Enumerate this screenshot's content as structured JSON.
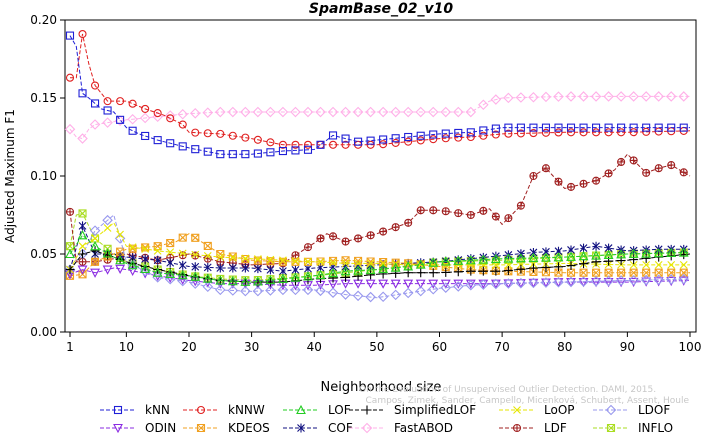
{
  "chart_data": {
    "type": "line",
    "title": "SpamBase_02_v10",
    "xlabel": "Neighborhood size",
    "ylabel": "Adjusted Maximum F1",
    "xlim": [
      1,
      100
    ],
    "ylim": [
      0,
      0.2
    ],
    "xticks": [
      1,
      10,
      20,
      30,
      40,
      50,
      60,
      70,
      80,
      90,
      100
    ],
    "yticks": [
      "0.00",
      "0.05",
      "0.10",
      "0.15",
      "0.20"
    ],
    "grid": false,
    "legend_position": "bottom",
    "watermark": {
      "line1": "Campos, Zimek, Sander, Campello, Micenková, Schubert, Assent, Houle",
      "line2": "On the Evaluation of Unsupervised Outlier Detection. DAMI, 2015."
    },
    "series": [
      {
        "name": "kNN",
        "color": "#1f1fd6",
        "marker": "square",
        "x": [
          1,
          2,
          3,
          4,
          6,
          8,
          10,
          12,
          15,
          18,
          20,
          25,
          30,
          35,
          40,
          43,
          47,
          50,
          55,
          60,
          65,
          70,
          80,
          90,
          100
        ],
        "values": [
          0.19,
          0.183,
          0.153,
          0.15,
          0.143,
          0.141,
          0.131,
          0.127,
          0.123,
          0.12,
          0.118,
          0.114,
          0.114,
          0.116,
          0.117,
          0.126,
          0.122,
          0.123,
          0.125,
          0.127,
          0.128,
          0.131,
          0.131,
          0.131,
          0.131
        ]
      },
      {
        "name": "kNNW",
        "color": "#e02020",
        "marker": "circle",
        "x": [
          1,
          2,
          3,
          4,
          5,
          7,
          10,
          13,
          16,
          19,
          20,
          25,
          30,
          35,
          40,
          45,
          50,
          55,
          60,
          65,
          70,
          80,
          90,
          100
        ],
        "values": [
          0.163,
          0.163,
          0.191,
          0.172,
          0.158,
          0.148,
          0.148,
          0.143,
          0.139,
          0.133,
          0.128,
          0.127,
          0.124,
          0.12,
          0.12,
          0.12,
          0.12,
          0.122,
          0.124,
          0.125,
          0.127,
          0.128,
          0.128,
          0.129
        ]
      },
      {
        "name": "LOF",
        "color": "#22cc22",
        "marker": "triangle-up",
        "x": [
          1,
          3,
          5,
          8,
          10,
          15,
          20,
          25,
          30,
          35,
          40,
          45,
          50,
          55,
          60,
          65,
          70,
          80,
          90,
          100
        ],
        "values": [
          0.05,
          0.062,
          0.055,
          0.048,
          0.044,
          0.038,
          0.036,
          0.033,
          0.032,
          0.034,
          0.036,
          0.039,
          0.04,
          0.042,
          0.045,
          0.046,
          0.047,
          0.048,
          0.05,
          0.051
        ]
      },
      {
        "name": "SimplifiedLOF",
        "color": "#000000",
        "marker": "plus",
        "x": [
          1,
          3,
          5,
          8,
          10,
          15,
          20,
          25,
          30,
          35,
          40,
          45,
          50,
          55,
          60,
          65,
          70,
          75,
          80,
          85,
          90,
          95,
          100
        ],
        "values": [
          0.04,
          0.05,
          0.052,
          0.048,
          0.045,
          0.04,
          0.036,
          0.033,
          0.032,
          0.032,
          0.034,
          0.035,
          0.037,
          0.038,
          0.038,
          0.039,
          0.039,
          0.041,
          0.042,
          0.045,
          0.046,
          0.048,
          0.05
        ]
      },
      {
        "name": "LoOP",
        "color": "#e6e600",
        "marker": "x",
        "x": [
          1,
          3,
          5,
          8,
          10,
          15,
          20,
          25,
          30,
          35,
          40,
          45,
          50,
          55,
          60,
          65,
          70,
          80,
          90,
          100
        ],
        "values": [
          0.04,
          0.055,
          0.06,
          0.07,
          0.055,
          0.052,
          0.05,
          0.048,
          0.047,
          0.046,
          0.045,
          0.044,
          0.044,
          0.043,
          0.043,
          0.043,
          0.043,
          0.044,
          0.043,
          0.043
        ]
      },
      {
        "name": "LDOF",
        "color": "#9999ee",
        "marker": "diamond",
        "x": [
          1,
          3,
          5,
          8,
          10,
          15,
          20,
          25,
          30,
          35,
          40,
          45,
          50,
          55,
          60,
          65,
          70,
          80,
          90,
          100
        ],
        "values": [
          0.04,
          0.05,
          0.065,
          0.075,
          0.045,
          0.035,
          0.032,
          0.027,
          0.026,
          0.027,
          0.027,
          0.024,
          0.022,
          0.025,
          0.028,
          0.03,
          0.031,
          0.032,
          0.033,
          0.034
        ]
      },
      {
        "name": "ODIN",
        "color": "#8a2be2",
        "marker": "triangle-down",
        "x": [
          1,
          3,
          5,
          8,
          10,
          15,
          20,
          25,
          30,
          35,
          40,
          45,
          50,
          55,
          60,
          65,
          70,
          80,
          90,
          100
        ],
        "values": [
          0.037,
          0.04,
          0.038,
          0.041,
          0.04,
          0.036,
          0.033,
          0.031,
          0.031,
          0.03,
          0.03,
          0.031,
          0.031,
          0.031,
          0.031,
          0.031,
          0.031,
          0.032,
          0.032,
          0.033
        ]
      },
      {
        "name": "KDEOS",
        "color": "#f0a020",
        "marker": "square-x",
        "x": [
          1,
          3,
          5,
          8,
          10,
          15,
          18,
          20,
          25,
          30,
          35,
          40,
          45,
          50,
          55,
          60,
          65,
          70,
          80,
          90,
          100
        ],
        "values": [
          0.036,
          0.037,
          0.045,
          0.05,
          0.053,
          0.055,
          0.058,
          0.063,
          0.05,
          0.046,
          0.045,
          0.045,
          0.046,
          0.045,
          0.044,
          0.042,
          0.04,
          0.039,
          0.038,
          0.038,
          0.038
        ]
      },
      {
        "name": "COF",
        "color": "#101080",
        "marker": "asterisk",
        "x": [
          1,
          3,
          5,
          8,
          10,
          15,
          20,
          25,
          30,
          35,
          40,
          45,
          50,
          55,
          60,
          65,
          70,
          75,
          80,
          85,
          90,
          95,
          100
        ],
        "values": [
          0.04,
          0.068,
          0.05,
          0.05,
          0.048,
          0.046,
          0.042,
          0.041,
          0.041,
          0.039,
          0.041,
          0.042,
          0.043,
          0.044,
          0.045,
          0.047,
          0.049,
          0.051,
          0.052,
          0.055,
          0.052,
          0.053,
          0.053
        ]
      },
      {
        "name": "FastABOD",
        "color": "#ffb0e8",
        "marker": "diamond",
        "x": [
          1,
          2,
          3,
          4,
          5,
          10,
          15,
          20,
          25,
          30,
          40,
          50,
          60,
          65,
          68,
          70,
          80,
          90,
          100
        ],
        "values": [
          0.13,
          0.125,
          0.124,
          0.13,
          0.133,
          0.136,
          0.138,
          0.14,
          0.141,
          0.141,
          0.141,
          0.141,
          0.141,
          0.141,
          0.148,
          0.15,
          0.151,
          0.151,
          0.151
        ]
      },
      {
        "name": "LDF",
        "color": "#a02020",
        "marker": "circle-plus",
        "x": [
          1,
          2,
          3,
          5,
          8,
          10,
          15,
          20,
          25,
          30,
          35,
          40,
          42,
          45,
          50,
          55,
          57,
          60,
          65,
          68,
          70,
          73,
          75,
          77,
          80,
          85,
          88,
          90,
          93,
          95,
          97,
          100
        ],
        "values": [
          0.077,
          0.045,
          0.045,
          0.045,
          0.047,
          0.05,
          0.046,
          0.05,
          0.045,
          0.043,
          0.044,
          0.057,
          0.063,
          0.058,
          0.063,
          0.07,
          0.078,
          0.078,
          0.075,
          0.079,
          0.069,
          0.081,
          0.1,
          0.105,
          0.092,
          0.097,
          0.104,
          0.114,
          0.102,
          0.105,
          0.107,
          0.1
        ]
      },
      {
        "name": "INFLO",
        "color": "#aadd22",
        "marker": "square-x",
        "x": [
          1,
          2,
          3,
          5,
          8,
          10,
          15,
          20,
          25,
          30,
          40,
          50,
          60,
          70,
          80,
          90,
          100
        ],
        "values": [
          0.055,
          0.075,
          0.076,
          0.06,
          0.05,
          0.045,
          0.04,
          0.036,
          0.034,
          0.033,
          0.036,
          0.04,
          0.045,
          0.046,
          0.048,
          0.05,
          0.051
        ]
      }
    ]
  }
}
